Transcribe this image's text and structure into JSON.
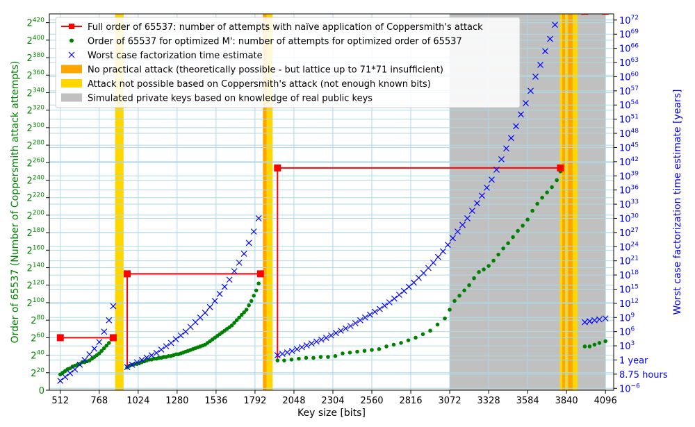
{
  "chart_data": {
    "type": "scatter",
    "xlabel": "Key size [bits]",
    "ylabel_left": "Order of 65537 (Number of Coppersmith attack attempts)",
    "ylabel_right": "Worst case factorization time estimate [years]",
    "x_ticks": [
      512,
      768,
      1024,
      1280,
      1536,
      1792,
      2048,
      2304,
      2560,
      2816,
      3072,
      3328,
      3584,
      3840,
      4096
    ],
    "xlim": [
      440,
      4150
    ],
    "ylim_left_log2": [
      0,
      430
    ],
    "left_ticks": [
      {
        "v": 0,
        "base": "0",
        "exp": ""
      },
      {
        "v": 20,
        "base": "2",
        "exp": "20"
      },
      {
        "v": 40,
        "base": "2",
        "exp": "40"
      },
      {
        "v": 60,
        "base": "2",
        "exp": "60"
      },
      {
        "v": 80,
        "base": "2",
        "exp": "80"
      },
      {
        "v": 100,
        "base": "2",
        "exp": "100"
      },
      {
        "v": 120,
        "base": "2",
        "exp": "120"
      },
      {
        "v": 140,
        "base": "2",
        "exp": "140"
      },
      {
        "v": 160,
        "base": "2",
        "exp": "160"
      },
      {
        "v": 180,
        "base": "2",
        "exp": "180"
      },
      {
        "v": 200,
        "base": "2",
        "exp": "200"
      },
      {
        "v": 220,
        "base": "2",
        "exp": "220"
      },
      {
        "v": 240,
        "base": "2",
        "exp": "240"
      },
      {
        "v": 260,
        "base": "2",
        "exp": "260"
      },
      {
        "v": 280,
        "base": "2",
        "exp": "280"
      },
      {
        "v": 300,
        "base": "2",
        "exp": "300"
      },
      {
        "v": 320,
        "base": "2",
        "exp": "320"
      },
      {
        "v": 340,
        "base": "2",
        "exp": "340"
      },
      {
        "v": 360,
        "base": "2",
        "exp": "360"
      },
      {
        "v": 380,
        "base": "2",
        "exp": "380"
      },
      {
        "v": 400,
        "base": "2",
        "exp": "400"
      },
      {
        "v": 420,
        "base": "2",
        "exp": "420"
      }
    ],
    "ylim_right_log10": [
      -6.4,
      73.3
    ],
    "right_ticks": [
      {
        "v": -6,
        "base": "10",
        "exp": "−6"
      },
      {
        "v": -3,
        "base": "8.75 hours",
        "exp": ""
      },
      {
        "v": 0,
        "base": "1 year",
        "exp": ""
      },
      {
        "v": 3,
        "base": "10",
        "exp": "3"
      },
      {
        "v": 6,
        "base": "10",
        "exp": "6"
      },
      {
        "v": 9,
        "base": "10",
        "exp": "9"
      },
      {
        "v": 12,
        "base": "10",
        "exp": "12"
      },
      {
        "v": 15,
        "base": "10",
        "exp": "15"
      },
      {
        "v": 18,
        "base": "10",
        "exp": "18"
      },
      {
        "v": 21,
        "base": "10",
        "exp": "21"
      },
      {
        "v": 24,
        "base": "10",
        "exp": "24"
      },
      {
        "v": 27,
        "base": "10",
        "exp": "27"
      },
      {
        "v": 30,
        "base": "10",
        "exp": "30"
      },
      {
        "v": 33,
        "base": "10",
        "exp": "33"
      },
      {
        "v": 36,
        "base": "10",
        "exp": "36"
      },
      {
        "v": 39,
        "base": "10",
        "exp": "39"
      },
      {
        "v": 42,
        "base": "10",
        "exp": "42"
      },
      {
        "v": 45,
        "base": "10",
        "exp": "45"
      },
      {
        "v": 48,
        "base": "10",
        "exp": "48"
      },
      {
        "v": 51,
        "base": "10",
        "exp": "51"
      },
      {
        "v": 54,
        "base": "10",
        "exp": "54"
      },
      {
        "v": 57,
        "base": "10",
        "exp": "57"
      },
      {
        "v": 60,
        "base": "10",
        "exp": "60"
      },
      {
        "v": 63,
        "base": "10",
        "exp": "63"
      },
      {
        "v": 66,
        "base": "10",
        "exp": "66"
      },
      {
        "v": 69,
        "base": "10",
        "exp": "69"
      },
      {
        "v": 72,
        "base": "10",
        "exp": "72"
      }
    ],
    "grid": true,
    "legend_position": "top-left",
    "colors": {
      "full_order": "#ff0000",
      "optimized": "#008000",
      "worst_case": "#0000ff",
      "no_practical": "#ffa500",
      "not_possible": "#ffd700",
      "simulated": "#c0c0c0",
      "grid": "#add8e6"
    },
    "regions": [
      {
        "kind": "not_possible",
        "x": [
          872,
          928
        ]
      },
      {
        "kind": "not_possible",
        "x": [
          1844,
          1908
        ]
      },
      {
        "kind": "no_practical",
        "x": [
          1844,
          1868
        ]
      },
      {
        "kind": "simulated",
        "x": [
          3072,
          4096
        ]
      },
      {
        "kind": "not_possible",
        "x": [
          3796,
          3850
        ]
      },
      {
        "kind": "no_practical",
        "x": [
          3812,
          3830
        ]
      },
      {
        "kind": "no_practical",
        "x": [
          3850,
          3880
        ]
      },
      {
        "kind": "not_possible",
        "x": [
          3880,
          3912
        ]
      }
    ],
    "series": [
      {
        "name": "Full order of 65537: number of attempts with naïve application of Coppersmith's attack",
        "kind": "step",
        "segments": [
          {
            "x": [
              512,
              860
            ],
            "y": 60
          },
          {
            "x": 952,
            "y": [
              26,
              133
            ]
          },
          {
            "x": [
              952,
              1828
            ],
            "y": 133
          },
          {
            "x": 1940,
            "y": [
              34,
              254
            ]
          },
          {
            "x": [
              1940,
              3800
            ],
            "y": 254
          },
          {
            "x": [
              3960,
              4096
            ],
            "y": 433
          }
        ],
        "markers": [
          [
            512,
            60
          ],
          [
            860,
            60
          ],
          [
            952,
            133
          ],
          [
            1828,
            133
          ],
          [
            1940,
            254
          ],
          [
            3800,
            254
          ],
          [
            3960,
            433
          ],
          [
            4096,
            433
          ]
        ]
      },
      {
        "name": "Order of 65537 for optimized M': number of attempts for optimized order of 65537",
        "kind": "dots",
        "x": [
          512,
          528,
          544,
          560,
          576,
          592,
          608,
          624,
          640,
          656,
          672,
          688,
          704,
          720,
          736,
          752,
          768,
          784,
          800,
          816,
          832,
          848,
          860
        ],
        "y": [
          18,
          20,
          22,
          24,
          25,
          27,
          28,
          29,
          30,
          32,
          32,
          33,
          34,
          36,
          38,
          40,
          42,
          45,
          48,
          51,
          54,
          58,
          60
        ],
        "x2": [
          952,
          968,
          984,
          1000,
          1016,
          1032,
          1048,
          1064,
          1080,
          1096,
          1112,
          1128,
          1144,
          1160,
          1176,
          1192,
          1208,
          1224,
          1240,
          1256,
          1272,
          1288,
          1304,
          1320,
          1336,
          1352,
          1368,
          1384,
          1400,
          1416,
          1432,
          1448,
          1464,
          1480,
          1496,
          1512,
          1528,
          1544,
          1560,
          1576,
          1592,
          1608,
          1624,
          1640,
          1656,
          1672,
          1688,
          1704,
          1720,
          1736,
          1752,
          1768,
          1784,
          1800,
          1816,
          1828
        ],
        "y2": [
          26,
          28,
          29,
          30,
          30,
          31,
          32,
          33,
          34,
          35,
          35,
          36,
          36,
          37,
          37,
          38,
          38,
          39,
          39,
          40,
          41,
          41,
          42,
          43,
          44,
          45,
          46,
          47,
          48,
          49,
          50,
          51,
          52,
          54,
          56,
          58,
          60,
          62,
          64,
          66,
          68,
          70,
          72,
          74,
          77,
          80,
          83,
          86,
          89,
          92,
          97,
          102,
          108,
          114,
          122,
          133
        ],
        "x3": [
          1940,
          1984,
          2032,
          2080,
          2128,
          2176,
          2224,
          2272,
          2320,
          2368,
          2416,
          2464,
          2512,
          2560,
          2608,
          2656,
          2704,
          2752,
          2800,
          2848,
          2896,
          2944,
          2992,
          3040,
          3072,
          3104,
          3136,
          3168,
          3200,
          3232,
          3264,
          3296,
          3328,
          3360,
          3392,
          3424,
          3456,
          3488,
          3520,
          3552,
          3584,
          3616,
          3648,
          3680,
          3712,
          3744,
          3776,
          3800
        ],
        "y3": [
          34,
          34,
          35,
          36,
          37,
          37,
          38,
          38,
          39,
          42,
          43,
          44,
          45,
          46,
          47,
          50,
          52,
          54,
          57,
          60,
          64,
          68,
          75,
          82,
          92,
          102,
          108,
          114,
          120,
          128,
          135,
          138,
          142,
          148,
          155,
          162,
          168,
          175,
          182,
          188,
          195,
          205,
          213,
          220,
          226,
          232,
          240,
          250
        ],
        "x4": [
          3960,
          3992,
          4024,
          4056,
          4096
        ],
        "y4": [
          50,
          50,
          52,
          54,
          56
        ]
      },
      {
        "name": "Worst case factorization time estimate",
        "kind": "x",
        "x": [
          512,
          544,
          576,
          608,
          640,
          672,
          704,
          736,
          768,
          800,
          832,
          860
        ],
        "y": [
          -4.4,
          -3.6,
          -2.8,
          -2,
          -1,
          0,
          1.2,
          2.4,
          3.8,
          6,
          8.4,
          11.4
        ],
        "x2": [
          952,
          984,
          1016,
          1048,
          1080,
          1112,
          1144,
          1176,
          1208,
          1240,
          1272,
          1304,
          1336,
          1368,
          1400,
          1432,
          1464,
          1496,
          1528,
          1560,
          1592,
          1624,
          1656,
          1688,
          1720,
          1752,
          1784,
          1816
        ],
        "y2": [
          -1.5,
          -1,
          -0.5,
          0,
          0.5,
          1,
          1.5,
          2.2,
          2.9,
          3.6,
          4.4,
          5.2,
          6,
          7,
          8,
          9,
          10,
          11.2,
          12.5,
          14,
          15.5,
          17,
          18.8,
          20.6,
          22.5,
          24.8,
          27.2,
          30
        ],
        "x3": [
          1940,
          1972,
          2004,
          2036,
          2068,
          2100,
          2132,
          2164,
          2196,
          2228,
          2260,
          2292,
          2324,
          2356,
          2388,
          2420,
          2452,
          2484,
          2516,
          2548,
          2580,
          2612,
          2644,
          2676,
          2708,
          2740,
          2772,
          2804,
          2836,
          2868,
          2900,
          2932,
          2964,
          2996,
          3028,
          3060,
          3092,
          3124,
          3156,
          3188,
          3220,
          3252,
          3284,
          3316,
          3348,
          3380,
          3412,
          3444,
          3476,
          3508,
          3540,
          3572,
          3604,
          3636,
          3668,
          3700,
          3732,
          3764,
          3796
        ],
        "y3": [
          1,
          1.3,
          1.6,
          1.9,
          2.3,
          2.7,
          3.1,
          3.5,
          3.9,
          4.3,
          4.7,
          5.2,
          5.7,
          6.2,
          6.7,
          7.2,
          7.8,
          8.4,
          9,
          9.6,
          10.2,
          10.8,
          11.5,
          12.2,
          13,
          13.8,
          14.6,
          15.5,
          16.4,
          17.4,
          18.4,
          19.5,
          20.6,
          21.8,
          23,
          24.4,
          25.8,
          27.2,
          28.6,
          30,
          31.6,
          33.2,
          34.8,
          36.5,
          38.2,
          40.3,
          42.5,
          44.8,
          47,
          49.5,
          52,
          54.4,
          57,
          60,
          62.5,
          65.4,
          68,
          71,
          74.2
        ],
        "x4": [
          3960,
          3992,
          4024,
          4056,
          4096
        ],
        "y4": [
          8,
          8.2,
          8.4,
          8.6,
          8.8
        ]
      }
    ],
    "region_legend": [
      {
        "kind": "no_practical",
        "label": "No practical attack (theoretically possible - but lattice up to 71*71 insufficient)"
      },
      {
        "kind": "not_possible",
        "label": "Attack not possible based on Coppersmith's attack (not enough known bits)"
      },
      {
        "kind": "simulated",
        "label": "Simulated private keys based on knowledge of real public keys"
      }
    ]
  }
}
